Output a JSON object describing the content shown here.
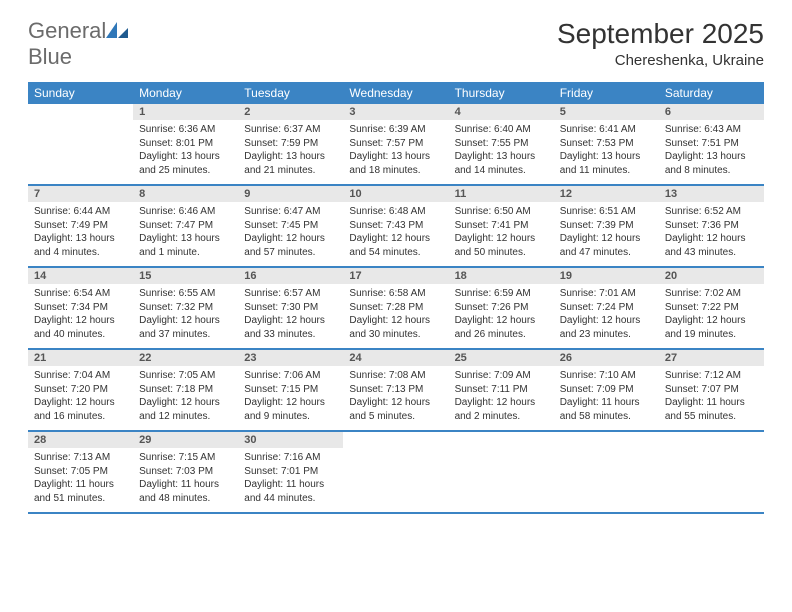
{
  "logo": {
    "text1": "General",
    "text2": "Blue"
  },
  "title": "September 2025",
  "location": "Chereshenka, Ukraine",
  "colors": {
    "header_bg": "#3b84c4",
    "header_text": "#ffffff",
    "daynum_bg": "#e8e8e8",
    "daynum_text": "#555555",
    "body_text": "#333333",
    "logo_gray": "#6b6b6b",
    "logo_blue": "#2f77b8",
    "page_bg": "#ffffff"
  },
  "weekdays": [
    "Sunday",
    "Monday",
    "Tuesday",
    "Wednesday",
    "Thursday",
    "Friday",
    "Saturday"
  ],
  "weeks": [
    [
      {
        "n": "",
        "sr": "",
        "ss": "",
        "dl": ""
      },
      {
        "n": "1",
        "sr": "Sunrise: 6:36 AM",
        "ss": "Sunset: 8:01 PM",
        "dl": "Daylight: 13 hours and 25 minutes."
      },
      {
        "n": "2",
        "sr": "Sunrise: 6:37 AM",
        "ss": "Sunset: 7:59 PM",
        "dl": "Daylight: 13 hours and 21 minutes."
      },
      {
        "n": "3",
        "sr": "Sunrise: 6:39 AM",
        "ss": "Sunset: 7:57 PM",
        "dl": "Daylight: 13 hours and 18 minutes."
      },
      {
        "n": "4",
        "sr": "Sunrise: 6:40 AM",
        "ss": "Sunset: 7:55 PM",
        "dl": "Daylight: 13 hours and 14 minutes."
      },
      {
        "n": "5",
        "sr": "Sunrise: 6:41 AM",
        "ss": "Sunset: 7:53 PM",
        "dl": "Daylight: 13 hours and 11 minutes."
      },
      {
        "n": "6",
        "sr": "Sunrise: 6:43 AM",
        "ss": "Sunset: 7:51 PM",
        "dl": "Daylight: 13 hours and 8 minutes."
      }
    ],
    [
      {
        "n": "7",
        "sr": "Sunrise: 6:44 AM",
        "ss": "Sunset: 7:49 PM",
        "dl": "Daylight: 13 hours and 4 minutes."
      },
      {
        "n": "8",
        "sr": "Sunrise: 6:46 AM",
        "ss": "Sunset: 7:47 PM",
        "dl": "Daylight: 13 hours and 1 minute."
      },
      {
        "n": "9",
        "sr": "Sunrise: 6:47 AM",
        "ss": "Sunset: 7:45 PM",
        "dl": "Daylight: 12 hours and 57 minutes."
      },
      {
        "n": "10",
        "sr": "Sunrise: 6:48 AM",
        "ss": "Sunset: 7:43 PM",
        "dl": "Daylight: 12 hours and 54 minutes."
      },
      {
        "n": "11",
        "sr": "Sunrise: 6:50 AM",
        "ss": "Sunset: 7:41 PM",
        "dl": "Daylight: 12 hours and 50 minutes."
      },
      {
        "n": "12",
        "sr": "Sunrise: 6:51 AM",
        "ss": "Sunset: 7:39 PM",
        "dl": "Daylight: 12 hours and 47 minutes."
      },
      {
        "n": "13",
        "sr": "Sunrise: 6:52 AM",
        "ss": "Sunset: 7:36 PM",
        "dl": "Daylight: 12 hours and 43 minutes."
      }
    ],
    [
      {
        "n": "14",
        "sr": "Sunrise: 6:54 AM",
        "ss": "Sunset: 7:34 PM",
        "dl": "Daylight: 12 hours and 40 minutes."
      },
      {
        "n": "15",
        "sr": "Sunrise: 6:55 AM",
        "ss": "Sunset: 7:32 PM",
        "dl": "Daylight: 12 hours and 37 minutes."
      },
      {
        "n": "16",
        "sr": "Sunrise: 6:57 AM",
        "ss": "Sunset: 7:30 PM",
        "dl": "Daylight: 12 hours and 33 minutes."
      },
      {
        "n": "17",
        "sr": "Sunrise: 6:58 AM",
        "ss": "Sunset: 7:28 PM",
        "dl": "Daylight: 12 hours and 30 minutes."
      },
      {
        "n": "18",
        "sr": "Sunrise: 6:59 AM",
        "ss": "Sunset: 7:26 PM",
        "dl": "Daylight: 12 hours and 26 minutes."
      },
      {
        "n": "19",
        "sr": "Sunrise: 7:01 AM",
        "ss": "Sunset: 7:24 PM",
        "dl": "Daylight: 12 hours and 23 minutes."
      },
      {
        "n": "20",
        "sr": "Sunrise: 7:02 AM",
        "ss": "Sunset: 7:22 PM",
        "dl": "Daylight: 12 hours and 19 minutes."
      }
    ],
    [
      {
        "n": "21",
        "sr": "Sunrise: 7:04 AM",
        "ss": "Sunset: 7:20 PM",
        "dl": "Daylight: 12 hours and 16 minutes."
      },
      {
        "n": "22",
        "sr": "Sunrise: 7:05 AM",
        "ss": "Sunset: 7:18 PM",
        "dl": "Daylight: 12 hours and 12 minutes."
      },
      {
        "n": "23",
        "sr": "Sunrise: 7:06 AM",
        "ss": "Sunset: 7:15 PM",
        "dl": "Daylight: 12 hours and 9 minutes."
      },
      {
        "n": "24",
        "sr": "Sunrise: 7:08 AM",
        "ss": "Sunset: 7:13 PM",
        "dl": "Daylight: 12 hours and 5 minutes."
      },
      {
        "n": "25",
        "sr": "Sunrise: 7:09 AM",
        "ss": "Sunset: 7:11 PM",
        "dl": "Daylight: 12 hours and 2 minutes."
      },
      {
        "n": "26",
        "sr": "Sunrise: 7:10 AM",
        "ss": "Sunset: 7:09 PM",
        "dl": "Daylight: 11 hours and 58 minutes."
      },
      {
        "n": "27",
        "sr": "Sunrise: 7:12 AM",
        "ss": "Sunset: 7:07 PM",
        "dl": "Daylight: 11 hours and 55 minutes."
      }
    ],
    [
      {
        "n": "28",
        "sr": "Sunrise: 7:13 AM",
        "ss": "Sunset: 7:05 PM",
        "dl": "Daylight: 11 hours and 51 minutes."
      },
      {
        "n": "29",
        "sr": "Sunrise: 7:15 AM",
        "ss": "Sunset: 7:03 PM",
        "dl": "Daylight: 11 hours and 48 minutes."
      },
      {
        "n": "30",
        "sr": "Sunrise: 7:16 AM",
        "ss": "Sunset: 7:01 PM",
        "dl": "Daylight: 11 hours and 44 minutes."
      },
      {
        "n": "",
        "sr": "",
        "ss": "",
        "dl": ""
      },
      {
        "n": "",
        "sr": "",
        "ss": "",
        "dl": ""
      },
      {
        "n": "",
        "sr": "",
        "ss": "",
        "dl": ""
      },
      {
        "n": "",
        "sr": "",
        "ss": "",
        "dl": ""
      }
    ]
  ]
}
